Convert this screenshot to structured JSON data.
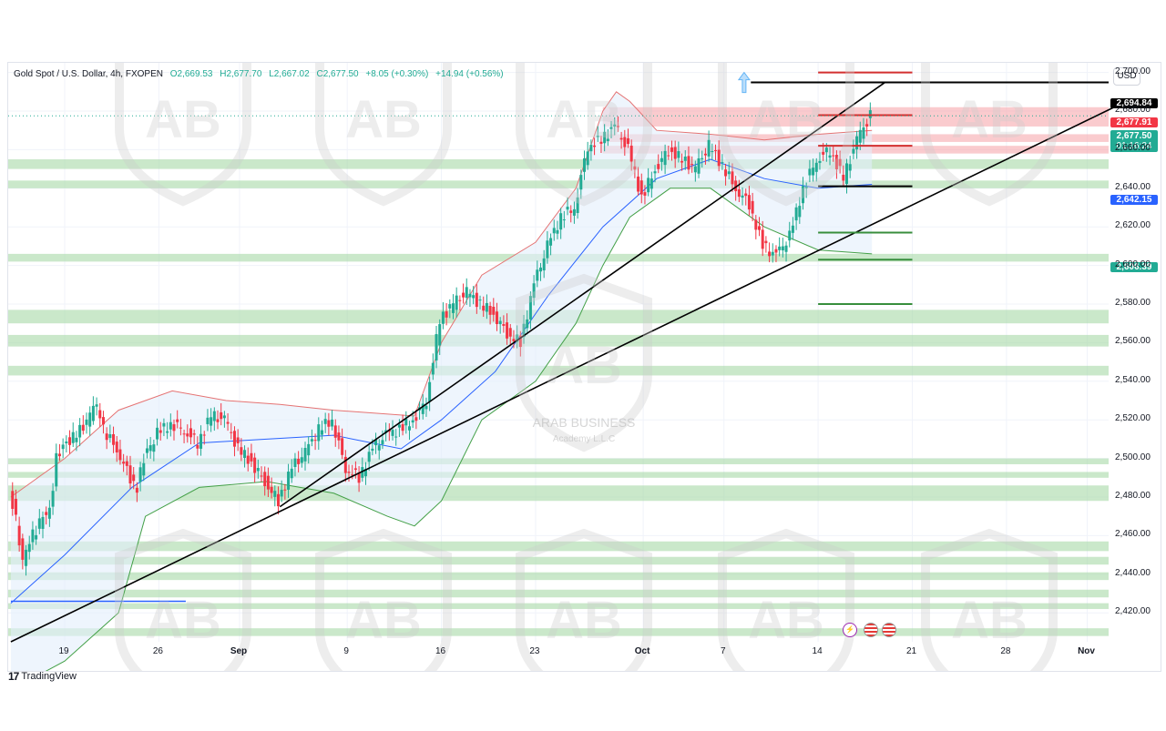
{
  "header": {
    "symbol": "Gold Spot / U.S. Dollar, 4h, FXOPEN",
    "open": "O2,669.53",
    "high": "H2,677.70",
    "low": "L2,667.02",
    "close": "C2,677.50",
    "change": "+8.05 (+0.30%)",
    "change2": "+14.94 (+0.56%)"
  },
  "currency_button": "USD",
  "price_tags": {
    "black": "2,694.84",
    "red": "2,677.91",
    "last": "2,677.50",
    "countdown": "01:16:24",
    "blue": "2,642.15",
    "green": "2,606.39"
  },
  "colors": {
    "up": "#22ab94",
    "down": "#f23645",
    "bb_line": "#2962ff",
    "resistance_zone": "#f7a8ad",
    "support_zone": "#a6d9a6"
  },
  "watermark": {
    "line1": "ARAB BUSINESS",
    "line2": "Academy L.L.C"
  },
  "branding": "TradingView",
  "events": [
    "lightning-icon",
    "us-flag-icon",
    "us-flag-icon"
  ],
  "chart_data": {
    "type": "candlestick",
    "title": "Gold Spot / U.S. Dollar, 4h, FXOPEN",
    "timeframe": "4h",
    "ylim": [
      2405,
      2705
    ],
    "y_ticks": [
      2420,
      2440,
      2460,
      2480,
      2500,
      2520,
      2540,
      2560,
      2580,
      2600,
      2620,
      2640,
      2660,
      2680,
      2700
    ],
    "y_tick_labels": [
      "2,420.00",
      "2,440.00",
      "2,460.00",
      "2,480.00",
      "2,500.00",
      "2,520.00",
      "2,540.00",
      "2,560.00",
      "2,580.00",
      "2,600.00",
      "2,620.00",
      "2,640.00",
      "2,660.00",
      "2,680.00",
      "2,700.00"
    ],
    "x_labels": [
      {
        "label": "19",
        "day": 0
      },
      {
        "label": "26",
        "day": 7
      },
      {
        "label": "Sep",
        "day": 13
      },
      {
        "label": "9",
        "day": 21
      },
      {
        "label": "16",
        "day": 28
      },
      {
        "label": "23",
        "day": 35
      },
      {
        "label": "Oct",
        "day": 43
      },
      {
        "label": "7",
        "day": 49
      },
      {
        "label": "14",
        "day": 56
      },
      {
        "label": "21",
        "day": 63
      },
      {
        "label": "28",
        "day": 70
      },
      {
        "label": "Nov",
        "day": 76
      }
    ],
    "xlim_days": [
      -4,
      78
    ],
    "price_path": [
      [
        -4,
        2485
      ],
      [
        -3.5,
        2468
      ],
      [
        -3,
        2447
      ],
      [
        -2.5,
        2458
      ],
      [
        -2,
        2463
      ],
      [
        -1.5,
        2470
      ],
      [
        -1,
        2472
      ],
      [
        -0.5,
        2500
      ],
      [
        0,
        2507
      ],
      [
        1,
        2512
      ],
      [
        2,
        2522
      ],
      [
        2.5,
        2528
      ],
      [
        3,
        2515
      ],
      [
        4,
        2505
      ],
      [
        5,
        2490
      ],
      [
        5.5,
        2485
      ],
      [
        6,
        2500
      ],
      [
        7,
        2513
      ],
      [
        8,
        2518
      ],
      [
        9,
        2515
      ],
      [
        10,
        2508
      ],
      [
        11,
        2522
      ],
      [
        12,
        2520
      ],
      [
        13,
        2505
      ],
      [
        14,
        2498
      ],
      [
        15,
        2488
      ],
      [
        16,
        2478
      ],
      [
        17,
        2495
      ],
      [
        18,
        2503
      ],
      [
        19,
        2515
      ],
      [
        20,
        2520
      ],
      [
        21,
        2495
      ],
      [
        22,
        2490
      ],
      [
        23,
        2505
      ],
      [
        24,
        2512
      ],
      [
        25,
        2515
      ],
      [
        26,
        2520
      ],
      [
        27,
        2530
      ],
      [
        28,
        2572
      ],
      [
        29,
        2580
      ],
      [
        30,
        2586
      ],
      [
        31,
        2580
      ],
      [
        32,
        2575
      ],
      [
        33,
        2565
      ],
      [
        34,
        2560
      ],
      [
        35,
        2590
      ],
      [
        36,
        2610
      ],
      [
        37,
        2625
      ],
      [
        38,
        2630
      ],
      [
        39,
        2662
      ],
      [
        40,
        2665
      ],
      [
        41,
        2672
      ],
      [
        42,
        2660
      ],
      [
        43,
        2635
      ],
      [
        44,
        2650
      ],
      [
        45,
        2660
      ],
      [
        46,
        2655
      ],
      [
        47,
        2650
      ],
      [
        48,
        2662
      ],
      [
        49,
        2652
      ],
      [
        50,
        2640
      ],
      [
        51,
        2632
      ],
      [
        52,
        2610
      ],
      [
        53,
        2605
      ],
      [
        54,
        2615
      ],
      [
        55,
        2640
      ],
      [
        56,
        2655
      ],
      [
        57,
        2660
      ],
      [
        58,
        2645
      ],
      [
        59,
        2665
      ],
      [
        60,
        2677.5
      ]
    ],
    "bollinger_mid": [
      [
        -4,
        2425
      ],
      [
        0,
        2450
      ],
      [
        5,
        2485
      ],
      [
        10,
        2508
      ],
      [
        15,
        2510
      ],
      [
        20,
        2512
      ],
      [
        25,
        2505
      ],
      [
        28,
        2520
      ],
      [
        32,
        2545
      ],
      [
        36,
        2585
      ],
      [
        40,
        2620
      ],
      [
        44,
        2645
      ],
      [
        48,
        2655
      ],
      [
        52,
        2645
      ],
      [
        56,
        2640
      ],
      [
        60,
        2642
      ]
    ],
    "bollinger_upper": [
      [
        -4,
        2480
      ],
      [
        0,
        2500
      ],
      [
        4,
        2525
      ],
      [
        8,
        2535
      ],
      [
        12,
        2530
      ],
      [
        16,
        2528
      ],
      [
        20,
        2525
      ],
      [
        26,
        2522
      ],
      [
        28,
        2560
      ],
      [
        31,
        2595
      ],
      [
        35,
        2612
      ],
      [
        38,
        2640
      ],
      [
        40,
        2680
      ],
      [
        41,
        2690
      ],
      [
        42,
        2685
      ],
      [
        44,
        2670
      ],
      [
        48,
        2668
      ],
      [
        52,
        2665
      ],
      [
        56,
        2668
      ],
      [
        60,
        2670
      ]
    ],
    "bollinger_lower": [
      [
        -4,
        2380
      ],
      [
        0,
        2395
      ],
      [
        4,
        2420
      ],
      [
        6,
        2470
      ],
      [
        10,
        2485
      ],
      [
        15,
        2488
      ],
      [
        20,
        2482
      ],
      [
        24,
        2470
      ],
      [
        26,
        2465
      ],
      [
        28,
        2478
      ],
      [
        31,
        2520
      ],
      [
        35,
        2540
      ],
      [
        38,
        2570
      ],
      [
        40,
        2600
      ],
      [
        42,
        2625
      ],
      [
        45,
        2640
      ],
      [
        48,
        2640
      ],
      [
        52,
        2620
      ],
      [
        56,
        2608
      ],
      [
        60,
        2606
      ]
    ],
    "trendlines": [
      {
        "from": [
          -4,
          2405
        ],
        "to": [
          78,
          2682
        ]
      },
      {
        "from": [
          16,
          2475
        ],
        "to": [
          61,
          2695
        ]
      }
    ],
    "horizontal_lines": [
      {
        "price": 2694.84,
        "from_day": 51,
        "to_day": 78,
        "color": "#000000"
      },
      {
        "price": 2700,
        "from_day": 56,
        "to_day": 63,
        "color": "#d32f2f"
      },
      {
        "price": 2677.9,
        "from_day": 56,
        "to_day": 63,
        "color": "#d32f2f"
      },
      {
        "price": 2662,
        "from_day": 56,
        "to_day": 63,
        "color": "#d32f2f"
      },
      {
        "price": 2641,
        "from_day": 56,
        "to_day": 63,
        "color": "#000000"
      },
      {
        "price": 2617,
        "from_day": 56,
        "to_day": 63,
        "color": "#388e3c"
      },
      {
        "price": 2603,
        "from_day": 56,
        "to_day": 63,
        "color": "#388e3c"
      },
      {
        "price": 2580,
        "from_day": 56,
        "to_day": 63,
        "color": "#388e3c"
      }
    ],
    "resistance_zones": [
      [
        2672,
        2682
      ],
      [
        2664,
        2668
      ],
      [
        2658,
        2662
      ]
    ],
    "support_zones": [
      [
        2650,
        2655
      ],
      [
        2640,
        2644
      ],
      [
        2602,
        2606
      ],
      [
        2570,
        2577
      ],
      [
        2558,
        2564
      ],
      [
        2543,
        2548
      ],
      [
        2497,
        2500
      ],
      [
        2490,
        2493
      ],
      [
        2478,
        2486
      ],
      [
        2452,
        2457
      ],
      [
        2445,
        2449
      ],
      [
        2437,
        2441
      ],
      [
        2428,
        2432
      ],
      [
        2422,
        2425
      ],
      [
        2408,
        2412
      ]
    ],
    "blue_hline": {
      "price": 2426,
      "from_day": -4,
      "to_day": 9
    },
    "dotted_last_price": 2677.5,
    "grid": true,
    "legend": "top-left"
  }
}
